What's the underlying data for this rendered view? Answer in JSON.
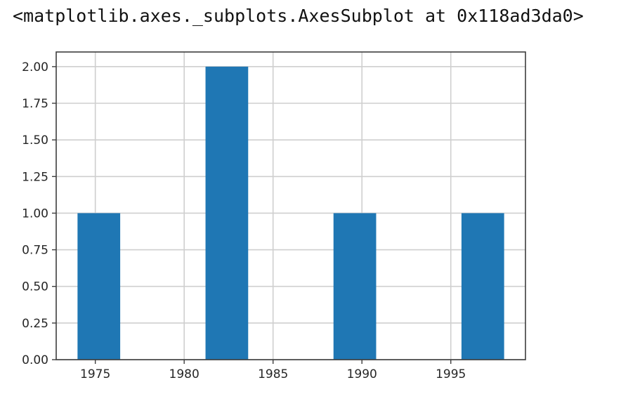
{
  "output_repr": "<matplotlib.axes._subplots.AxesSubplot at 0x118ad3da0>",
  "chart_data": {
    "type": "bar",
    "title": "",
    "xlabel": "",
    "ylabel": "",
    "bins": [
      {
        "start": 1974.0,
        "end": 1976.4,
        "count": 1
      },
      {
        "start": 1981.2,
        "end": 1983.6,
        "count": 2
      },
      {
        "start": 1988.4,
        "end": 1990.8,
        "count": 1
      },
      {
        "start": 1995.6,
        "end": 1998.0,
        "count": 1
      }
    ],
    "xlim": [
      1972.8,
      1999.2
    ],
    "ylim": [
      0,
      2.1
    ],
    "xticks": [
      1975,
      1980,
      1985,
      1990,
      1995
    ],
    "xtick_labels": [
      "1975",
      "1980",
      "1985",
      "1990",
      "1995"
    ],
    "yticks": [
      0,
      0.25,
      0.5,
      0.75,
      1.0,
      1.25,
      1.5,
      1.75,
      2.0
    ],
    "ytick_labels": [
      "0.00",
      "0.25",
      "0.50",
      "0.75",
      "1.00",
      "1.25",
      "1.50",
      "1.75",
      "2.00"
    ],
    "grid": true,
    "colors": {
      "bar": "#1f77b4",
      "grid": "#cfcfcf",
      "axes": "#3d3d3d"
    }
  }
}
